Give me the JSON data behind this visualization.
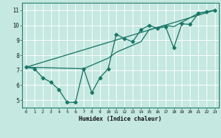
{
  "title": "",
  "xlabel": "Humidex (Indice chaleur)",
  "background_color": "#c5e8e0",
  "grid_color": "#ffffff",
  "line_color": "#1a7868",
  "xlim": [
    -0.5,
    23.5
  ],
  "ylim": [
    4.5,
    11.5
  ],
  "xticks": [
    0,
    1,
    2,
    3,
    4,
    5,
    6,
    7,
    8,
    9,
    10,
    11,
    12,
    13,
    14,
    15,
    16,
    17,
    18,
    19,
    20,
    21,
    22,
    23
  ],
  "yticks": [
    5,
    6,
    7,
    8,
    9,
    10,
    11
  ],
  "series1_x": [
    0,
    1,
    2,
    3,
    4,
    5,
    6,
    7,
    8,
    9,
    10,
    11,
    12,
    13,
    14,
    15,
    16,
    17,
    18,
    19,
    20,
    21,
    22,
    23
  ],
  "series1_y": [
    7.2,
    7.1,
    6.5,
    6.2,
    5.7,
    4.85,
    4.85,
    7.1,
    5.5,
    6.5,
    7.1,
    9.4,
    9.1,
    8.9,
    9.7,
    10.0,
    9.8,
    9.9,
    8.5,
    10.1,
    10.05,
    10.8,
    10.9,
    11.0
  ],
  "series2_x": [
    0,
    23
  ],
  "series2_y": [
    7.2,
    11.0
  ],
  "series3_x": [
    0,
    7,
    10,
    11,
    14,
    15,
    17,
    18,
    21,
    22,
    23
  ],
  "series3_y": [
    7.2,
    7.1,
    7.8,
    8.2,
    8.9,
    9.7,
    10.0,
    9.9,
    10.8,
    10.9,
    11.0
  ],
  "marker_size": 2.5,
  "line_width": 1.0
}
